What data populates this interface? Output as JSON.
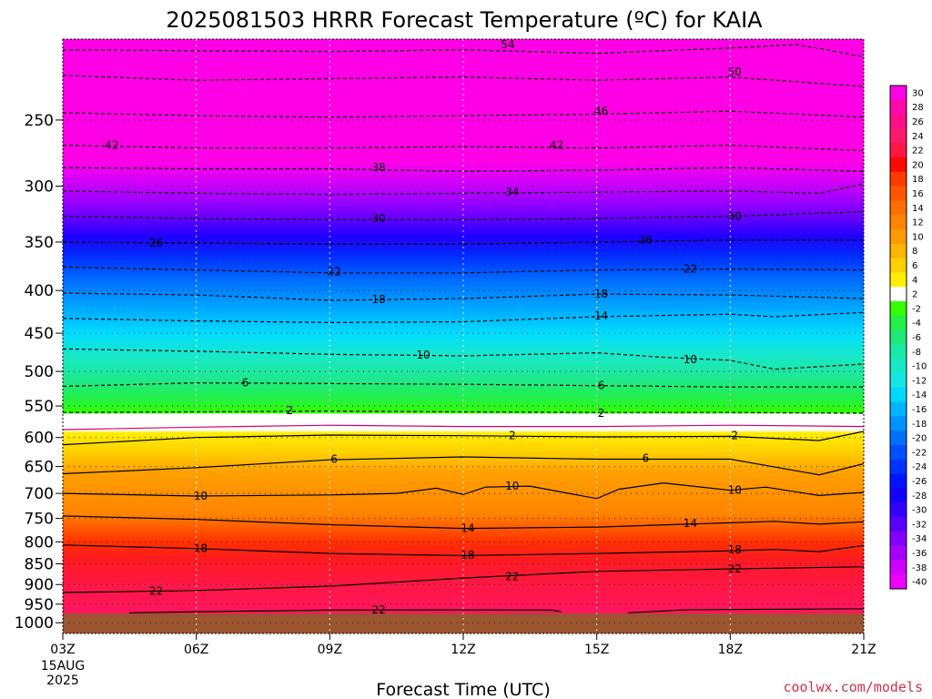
{
  "chart_data": {
    "type": "heatmap",
    "title": "2025081503 HRRR Forecast Temperature (ºC) for KAIA",
    "xlabel": "Forecast Time (UTC)",
    "ylabel": "",
    "credit": "coolwx.com/models",
    "x_ticks": [
      "03Z",
      "06Z",
      "09Z",
      "12Z",
      "15Z",
      "18Z",
      "21Z"
    ],
    "x_tick_hours": [
      3,
      6,
      9,
      12,
      15,
      18,
      21
    ],
    "x_date_lines": [
      "15AUG",
      "2025"
    ],
    "xlim": [
      3,
      21
    ],
    "y_ticks": [
      250,
      300,
      350,
      400,
      450,
      500,
      550,
      600,
      650,
      700,
      750,
      800,
      850,
      900,
      950,
      1000
    ],
    "ylim": [
      200,
      1030
    ],
    "yscale": "log",
    "y_inverted": true,
    "grid": true,
    "surface_pressure_hPa": 975,
    "colorbar_levels": [
      30,
      28,
      26,
      24,
      22,
      20,
      18,
      16,
      14,
      12,
      10,
      8,
      6,
      4,
      2,
      -2,
      -4,
      -6,
      -8,
      -10,
      -12,
      -14,
      -16,
      -18,
      -20,
      -22,
      -24,
      -26,
      -28,
      -30,
      -32,
      -34,
      -36,
      -38,
      -40
    ],
    "colorbar_colors": [
      "#ff00e6",
      "#ff0aa8",
      "#ff0f87",
      "#ff1a6a",
      "#ff1744",
      "#ff0a00",
      "#ff3a00",
      "#ff5500",
      "#ff6e00",
      "#ff8400",
      "#ff9a00",
      "#ffb400",
      "#ffd000",
      "#ffee00",
      "#ffffff",
      "#33ff00",
      "#22f044",
      "#1ee878",
      "#1ae8a6",
      "#18e8c8",
      "#14e6e4",
      "#00d8ff",
      "#00b4ff",
      "#0092ff",
      "#0070ff",
      "#0050ff",
      "#0032ff",
      "#0014ff",
      "#1400ff",
      "#3200ff",
      "#5a00ff",
      "#8200ff",
      "#a800ff",
      "#d000ff",
      "#f000ff"
    ],
    "contours": [
      {
        "level": 54,
        "style": "dashed",
        "points": [
          [
            3,
            206
          ],
          [
            9,
            207
          ],
          [
            12,
            206
          ],
          [
            15,
            208
          ],
          [
            18,
            205
          ],
          [
            19.5,
            203
          ],
          [
            21,
            210
          ]
        ]
      },
      {
        "level": 50,
        "style": "dashed",
        "points": [
          [
            3,
            221
          ],
          [
            6,
            224
          ],
          [
            9,
            223
          ],
          [
            12,
            222
          ],
          [
            15,
            224
          ],
          [
            18,
            222
          ],
          [
            21,
            228
          ]
        ]
      },
      {
        "level": 46,
        "style": "dashed",
        "points": [
          [
            3,
            245
          ],
          [
            6,
            247
          ],
          [
            9,
            248
          ],
          [
            12,
            247
          ],
          [
            15,
            246
          ],
          [
            18,
            244
          ],
          [
            21,
            248
          ]
        ]
      },
      {
        "level": 42,
        "style": "dashed",
        "points": [
          [
            3,
            268
          ],
          [
            6,
            270
          ],
          [
            9,
            270
          ],
          [
            12,
            269
          ],
          [
            15,
            270
          ],
          [
            18,
            268
          ],
          [
            21,
            272
          ]
        ]
      },
      {
        "level": 38,
        "style": "dashed",
        "points": [
          [
            3,
            285
          ],
          [
            6,
            286
          ],
          [
            9,
            286
          ],
          [
            12,
            288
          ],
          [
            15,
            287
          ],
          [
            18,
            285
          ],
          [
            21,
            288
          ]
        ]
      },
      {
        "level": 34,
        "style": "dashed",
        "points": [
          [
            3,
            304
          ],
          [
            6,
            306
          ],
          [
            9,
            307
          ],
          [
            12,
            306
          ],
          [
            15,
            305
          ],
          [
            18,
            304
          ],
          [
            20,
            306
          ],
          [
            21,
            298
          ]
        ]
      },
      {
        "level": 30,
        "style": "dashed",
        "points": [
          [
            3,
            326
          ],
          [
            6,
            328
          ],
          [
            9,
            329
          ],
          [
            12,
            329
          ],
          [
            15,
            328
          ],
          [
            18,
            326
          ],
          [
            21,
            322
          ]
        ]
      },
      {
        "level": 26,
        "style": "dashed",
        "points": [
          [
            3,
            350
          ],
          [
            6,
            351
          ],
          [
            9,
            352
          ],
          [
            12,
            352
          ],
          [
            15,
            350
          ],
          [
            18,
            348
          ],
          [
            21,
            348
          ]
        ]
      },
      {
        "level": 22,
        "style": "dashed",
        "points": [
          [
            3,
            375
          ],
          [
            6,
            378
          ],
          [
            9,
            381
          ],
          [
            12,
            381
          ],
          [
            15,
            378
          ],
          [
            18,
            377
          ],
          [
            21,
            378
          ]
        ]
      },
      {
        "level": 18,
        "style": "dashed",
        "points": [
          [
            3,
            403
          ],
          [
            6,
            405
          ],
          [
            9,
            411
          ],
          [
            12,
            409
          ],
          [
            15,
            404
          ],
          [
            18,
            405
          ],
          [
            21,
            409
          ]
        ]
      },
      {
        "level": 14,
        "style": "dashed",
        "points": [
          [
            3,
            432
          ],
          [
            6,
            435
          ],
          [
            9,
            437
          ],
          [
            12,
            436
          ],
          [
            15,
            430
          ],
          [
            18,
            427
          ],
          [
            19,
            430
          ],
          [
            21,
            425
          ]
        ]
      },
      {
        "level": 10,
        "style": "dashed",
        "points": [
          [
            3,
            470
          ],
          [
            6,
            473
          ],
          [
            9,
            477
          ],
          [
            12,
            479
          ],
          [
            15,
            475
          ],
          [
            16.5,
            481
          ],
          [
            18,
            485
          ],
          [
            19,
            497
          ],
          [
            21,
            490
          ]
        ]
      },
      {
        "level": 6,
        "style": "dashed",
        "points": [
          [
            3,
            521
          ],
          [
            6,
            516
          ],
          [
            9,
            517
          ],
          [
            12,
            518
          ],
          [
            15,
            520
          ],
          [
            18,
            522
          ],
          [
            21,
            522
          ]
        ]
      },
      {
        "level": 2,
        "style": "dashed",
        "points": [
          [
            3,
            560
          ],
          [
            9,
            558
          ],
          [
            12,
            559
          ],
          [
            15,
            560
          ],
          [
            18,
            560
          ],
          [
            21,
            561
          ]
        ]
      },
      {
        "level": -2,
        "style": "magenta",
        "points": [
          [
            3,
            587
          ],
          [
            6,
            583
          ],
          [
            9,
            580
          ],
          [
            12,
            582
          ],
          [
            15,
            582
          ],
          [
            18,
            580
          ],
          [
            21,
            582
          ]
        ]
      },
      {
        "level": 2,
        "style": "solid",
        "points": [
          [
            3,
            612
          ],
          [
            6,
            600
          ],
          [
            9,
            596
          ],
          [
            12,
            597
          ],
          [
            15,
            599
          ],
          [
            18,
            598
          ],
          [
            20,
            605
          ],
          [
            21,
            590
          ]
        ]
      },
      {
        "level": 6,
        "style": "solid",
        "points": [
          [
            3,
            663
          ],
          [
            6,
            652
          ],
          [
            9,
            638
          ],
          [
            12,
            633
          ],
          [
            15,
            637
          ],
          [
            18,
            637
          ],
          [
            20,
            665
          ],
          [
            21,
            645
          ]
        ]
      },
      {
        "level": 10,
        "style": "solid",
        "points": [
          [
            3,
            700
          ],
          [
            6,
            705
          ],
          [
            9,
            703
          ],
          [
            10.5,
            700
          ],
          [
            11.4,
            690
          ],
          [
            12,
            702
          ],
          [
            12.5,
            688
          ],
          [
            13.5,
            686
          ],
          [
            15,
            710
          ],
          [
            15.5,
            692
          ],
          [
            16.5,
            680
          ],
          [
            18,
            694
          ],
          [
            18.8,
            688
          ],
          [
            20,
            704
          ],
          [
            21,
            698
          ]
        ]
      },
      {
        "level": 14,
        "style": "solid",
        "points": [
          [
            3,
            745
          ],
          [
            6,
            752
          ],
          [
            9,
            763
          ],
          [
            12,
            771
          ],
          [
            15,
            768
          ],
          [
            18,
            759
          ],
          [
            19,
            756
          ],
          [
            20,
            762
          ],
          [
            21,
            757
          ]
        ]
      },
      {
        "level": 18,
        "style": "solid",
        "points": [
          [
            3,
            807
          ],
          [
            6,
            815
          ],
          [
            9,
            826
          ],
          [
            12,
            831
          ],
          [
            15,
            826
          ],
          [
            18,
            820
          ],
          [
            19,
            817
          ],
          [
            20,
            822
          ],
          [
            21,
            808
          ]
        ]
      },
      {
        "level": 22,
        "style": "solid",
        "points": [
          [
            3,
            920
          ],
          [
            6,
            915
          ],
          [
            9,
            904
          ],
          [
            12,
            884
          ],
          [
            15,
            868
          ],
          [
            18,
            862
          ],
          [
            21,
            857
          ]
        ]
      },
      {
        "level": 22,
        "style": "solid",
        "points": [
          [
            4.5,
            973
          ],
          [
            6,
            970
          ],
          [
            9,
            966
          ],
          [
            12,
            965
          ],
          [
            14,
            966
          ],
          [
            14.2,
            970
          ]
        ]
      },
      {
        "level": 22,
        "style": "solid",
        "points": [
          [
            15.7,
            973
          ],
          [
            17,
            965
          ],
          [
            18,
            964
          ],
          [
            20,
            963
          ],
          [
            21,
            962
          ]
        ]
      }
    ],
    "contour_labels": [
      {
        "text": "54",
        "x": 13.0,
        "y": 203
      },
      {
        "text": "50",
        "x": 18.1,
        "y": 219
      },
      {
        "text": "46",
        "x": 15.1,
        "y": 244
      },
      {
        "text": "42",
        "x": 4.1,
        "y": 268
      },
      {
        "text": "42",
        "x": 14.1,
        "y": 268
      },
      {
        "text": "38",
        "x": 10.1,
        "y": 285
      },
      {
        "text": "34",
        "x": 13.1,
        "y": 305
      },
      {
        "text": "30",
        "x": 10.1,
        "y": 328
      },
      {
        "text": "30",
        "x": 18.1,
        "y": 326
      },
      {
        "text": "26",
        "x": 5.1,
        "y": 351
      },
      {
        "text": "26",
        "x": 16.1,
        "y": 348
      },
      {
        "text": "22",
        "x": 9.1,
        "y": 380
      },
      {
        "text": "22",
        "x": 17.1,
        "y": 377
      },
      {
        "text": "18",
        "x": 10.1,
        "y": 410
      },
      {
        "text": "18",
        "x": 15.1,
        "y": 404
      },
      {
        "text": "14",
        "x": 15.1,
        "y": 429
      },
      {
        "text": "10",
        "x": 11.1,
        "y": 478
      },
      {
        "text": "10",
        "x": 17.1,
        "y": 484
      },
      {
        "text": "6",
        "x": 7.1,
        "y": 516
      },
      {
        "text": "6",
        "x": 15.1,
        "y": 520
      },
      {
        "text": "2",
        "x": 8.1,
        "y": 557
      },
      {
        "text": "2",
        "x": 15.1,
        "y": 561
      },
      {
        "text": "2",
        "x": 13.1,
        "y": 597
      },
      {
        "text": "2",
        "x": 18.1,
        "y": 597
      },
      {
        "text": "6",
        "x": 9.1,
        "y": 637
      },
      {
        "text": "6",
        "x": 16.1,
        "y": 635
      },
      {
        "text": "10",
        "x": 6.1,
        "y": 705
      },
      {
        "text": "10",
        "x": 13.1,
        "y": 686
      },
      {
        "text": "10",
        "x": 18.1,
        "y": 694
      },
      {
        "text": "14",
        "x": 12.1,
        "y": 771
      },
      {
        "text": "14",
        "x": 17.1,
        "y": 760
      },
      {
        "text": "18",
        "x": 6.1,
        "y": 815
      },
      {
        "text": "18",
        "x": 12.1,
        "y": 830
      },
      {
        "text": "18",
        "x": 18.1,
        "y": 818
      },
      {
        "text": "22",
        "x": 5.1,
        "y": 916
      },
      {
        "text": "22",
        "x": 13.1,
        "y": 880
      },
      {
        "text": "22",
        "x": 18.1,
        "y": 862
      },
      {
        "text": "22",
        "x": 10.1,
        "y": 965
      }
    ]
  }
}
